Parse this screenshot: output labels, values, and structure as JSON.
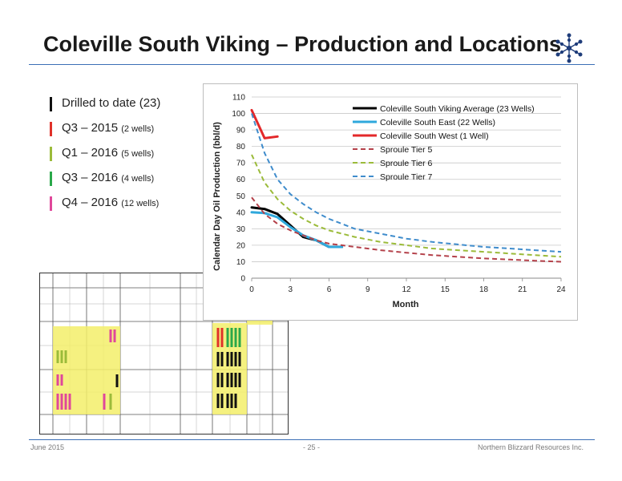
{
  "title": "Coleville South Viking – Production and Locations",
  "legend_list": [
    {
      "label": "Drilled to date (23)",
      "small": "",
      "color": "#111111"
    },
    {
      "label": "Q3 – 2015 ",
      "small": "(2 wells)",
      "color": "#e0322a"
    },
    {
      "label": "Q1 – 2016 ",
      "small": "(5 wells)",
      "color": "#9bbb3a"
    },
    {
      "label": "Q3 – 2016 ",
      "small": "(4 wells)",
      "color": "#2aa84a"
    },
    {
      "label": "Q4 – 2016 ",
      "small": "(12 wells)",
      "color": "#e0479a"
    }
  ],
  "footer": {
    "left": "June 2015",
    "center": "- 25 -",
    "right": "Northern Blizzard Resources Inc."
  },
  "chart_data": {
    "type": "line",
    "xlabel": "Month",
    "ylabel": "Calendar Day Oil Production (bbl/d)",
    "xlim": [
      0,
      24
    ],
    "ylim": [
      0,
      110
    ],
    "xticks": [
      0,
      3,
      6,
      9,
      12,
      15,
      18,
      21,
      24
    ],
    "yticks": [
      0,
      10,
      20,
      30,
      40,
      50,
      60,
      70,
      80,
      90,
      100,
      110
    ],
    "grid": "horizontal",
    "legend_position": "top-right",
    "series": [
      {
        "name": "Coleville South Viking Average  (23 Wells)",
        "color": "#000000",
        "style": "solid",
        "width": 3,
        "x": [
          0,
          1,
          2,
          3,
          4,
          5,
          6,
          7
        ],
        "y": [
          43,
          42,
          39,
          32,
          25,
          23,
          19,
          19
        ]
      },
      {
        "name": "Coleville South East (22 Wells)",
        "color": "#2fa8dc",
        "style": "solid",
        "width": 3,
        "x": [
          0,
          1,
          2,
          3,
          4,
          5,
          6,
          7
        ],
        "y": [
          40,
          39.5,
          37,
          31,
          26,
          23,
          19,
          19
        ]
      },
      {
        "name": "Coleville South West (1 Well)",
        "color": "#e3282a",
        "style": "solid",
        "width": 3,
        "x": [
          0,
          1,
          2
        ],
        "y": [
          102,
          85,
          86
        ]
      },
      {
        "name": "Sproule Tier 5",
        "color": "#b4414a",
        "style": "dashed",
        "width": 2,
        "x": [
          0,
          1,
          2,
          3,
          4,
          5,
          6,
          7,
          8,
          10,
          12,
          14,
          16,
          18,
          20,
          22,
          24
        ],
        "y": [
          49,
          39,
          33,
          29,
          26,
          23,
          21,
          20,
          19,
          17,
          15.5,
          14,
          13,
          12,
          11.3,
          10.6,
          10
        ]
      },
      {
        "name": "Sproule Tier 6",
        "color": "#9bbb3a",
        "style": "dashed",
        "width": 2,
        "x": [
          0,
          1,
          2,
          3,
          4,
          5,
          6,
          7,
          8,
          10,
          12,
          14,
          16,
          18,
          20,
          22,
          24
        ],
        "y": [
          75,
          58,
          48,
          41,
          36,
          32,
          29,
          27,
          25,
          22,
          20,
          18,
          17,
          16,
          15,
          14,
          13
        ]
      },
      {
        "name": "Sproule Tier 7",
        "color": "#3f8ccc",
        "style": "dashed",
        "width": 2,
        "x": [
          0,
          1,
          2,
          3,
          4,
          5,
          6,
          7,
          8,
          10,
          12,
          14,
          16,
          18,
          20,
          22,
          24
        ],
        "y": [
          100,
          76,
          60,
          51,
          45,
          40,
          36,
          33,
          30,
          27,
          24,
          22,
          20.5,
          19,
          18,
          17,
          16
        ]
      }
    ]
  }
}
